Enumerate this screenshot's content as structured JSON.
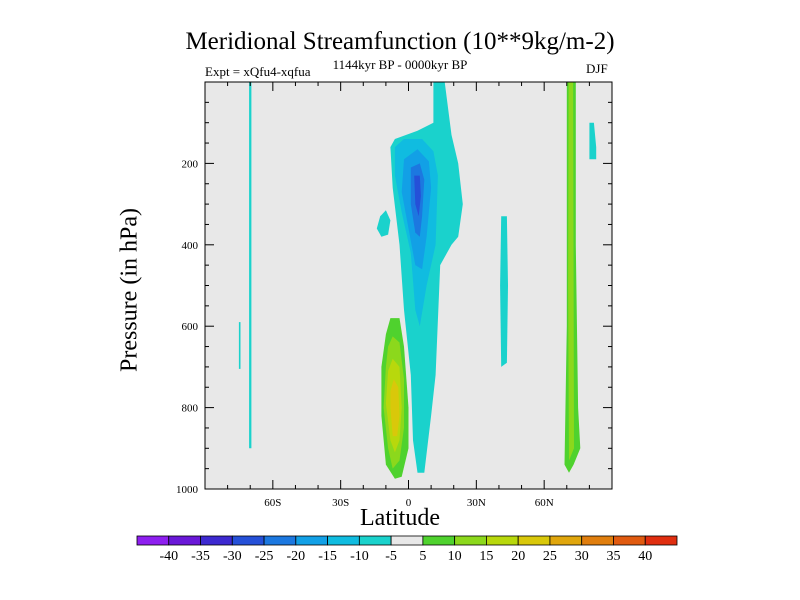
{
  "chart_data": {
    "type": "heatmap",
    "title": "Meridional Streamfunction (10**9kg/m-2)",
    "subtitle": "1144kyr BP - 0000kyr BP",
    "experiment": "Expt = xQfu4-xqfua",
    "season": "DJF",
    "xlabel": "Latitude",
    "ylabel": "Pressure (in hPa)",
    "x_ticks": [
      "60S",
      "30S",
      "0",
      "30N",
      "60N"
    ],
    "x_tick_values": [
      -60,
      -30,
      0,
      30,
      60
    ],
    "xlim": [
      -90,
      90
    ],
    "y_ticks": [
      "200",
      "400",
      "600",
      "800",
      "1000"
    ],
    "y_tick_values": [
      200,
      400,
      600,
      800,
      1000
    ],
    "ylim": [
      0,
      1000
    ],
    "background_color": "#e8e8e8",
    "colorbar": {
      "labels": [
        "-40",
        "-35",
        "-30",
        "-25",
        "-20",
        "-15",
        "-10",
        "-5",
        "5",
        "10",
        "15",
        "20",
        "25",
        "30",
        "35",
        "40"
      ],
      "colors": [
        "#8e1ff0",
        "#6a18d8",
        "#3d29d0",
        "#2550d8",
        "#1c78e0",
        "#12a0e6",
        "#10bce0",
        "#1ad2cc",
        "#e8e8e8",
        "#4fd22e",
        "#8cd81c",
        "#b8d80c",
        "#d9c80a",
        "#e0a60c",
        "#e07e0e",
        "#e05a10",
        "#e02e10"
      ]
    },
    "features": [
      {
        "name": "cell-a-0",
        "kind": "region",
        "level": -5,
        "points": [
          [
            -70.5,
            0
          ],
          [
            -69.5,
            0
          ],
          [
            -69.5,
            900
          ],
          [
            -70.5,
            900
          ]
        ]
      },
      {
        "name": "cell-b-0",
        "kind": "region",
        "level": -5,
        "points": [
          [
            -75,
            590
          ],
          [
            -74.3,
            590
          ],
          [
            -74.3,
            705
          ],
          [
            -75,
            705
          ]
        ]
      },
      {
        "name": "cell-c-0",
        "kind": "region",
        "level": -5,
        "points": [
          [
            -12.5,
            330
          ],
          [
            -10,
            315
          ],
          [
            -8,
            340
          ],
          [
            -9,
            375
          ],
          [
            -12,
            380
          ],
          [
            -14,
            360
          ]
        ]
      },
      {
        "name": "cell-d-0",
        "kind": "region",
        "level": -5,
        "points": [
          [
            11,
            0
          ],
          [
            16,
            0
          ],
          [
            19,
            130
          ],
          [
            22,
            200
          ],
          [
            24,
            300
          ],
          [
            22,
            380
          ],
          [
            19,
            400
          ],
          [
            14,
            450
          ],
          [
            12,
            720
          ],
          [
            10,
            820
          ],
          [
            7,
            960
          ],
          [
            4,
            960
          ],
          [
            2,
            880
          ],
          [
            1,
            720
          ],
          [
            -2,
            560
          ],
          [
            -4,
            400
          ],
          [
            -7,
            260
          ],
          [
            -8,
            160
          ],
          [
            -6,
            140
          ],
          [
            4,
            120
          ],
          [
            11,
            100
          ]
        ]
      },
      {
        "name": "cell-d-1",
        "kind": "region",
        "level": -10,
        "points": [
          [
            -6,
            160
          ],
          [
            -2,
            140
          ],
          [
            6,
            140
          ],
          [
            11,
            170
          ],
          [
            13,
            230
          ],
          [
            12,
            400
          ],
          [
            8,
            500
          ],
          [
            5,
            600
          ],
          [
            3,
            560
          ],
          [
            1,
            420
          ],
          [
            -3,
            320
          ],
          [
            -6,
            230
          ]
        ]
      },
      {
        "name": "cell-d-2",
        "kind": "region",
        "level": -15,
        "points": [
          [
            -2,
            190
          ],
          [
            4,
            165
          ],
          [
            9,
            195
          ],
          [
            10,
            260
          ],
          [
            8,
            380
          ],
          [
            6,
            460
          ],
          [
            3,
            450
          ],
          [
            0,
            360
          ],
          [
            -3,
            270
          ]
        ]
      },
      {
        "name": "cell-d-3",
        "kind": "region",
        "level": -20,
        "points": [
          [
            1,
            210
          ],
          [
            5,
            200
          ],
          [
            7,
            240
          ],
          [
            6,
            330
          ],
          [
            5,
            380
          ],
          [
            3,
            370
          ],
          [
            1,
            300
          ]
        ]
      },
      {
        "name": "cell-d-4",
        "kind": "region",
        "level": -25,
        "points": [
          [
            2.5,
            230
          ],
          [
            5,
            230
          ],
          [
            5.5,
            280
          ],
          [
            4.5,
            330
          ],
          [
            3,
            300
          ]
        ]
      },
      {
        "name": "cell-e-0",
        "kind": "region",
        "level": -5,
        "points": [
          [
            41,
            330
          ],
          [
            43.5,
            330
          ],
          [
            44,
            500
          ],
          [
            43.5,
            690
          ],
          [
            41,
            700
          ],
          [
            40.5,
            500
          ]
        ]
      },
      {
        "name": "cell-f-0",
        "kind": "region",
        "level": -5,
        "points": [
          [
            80,
            190
          ],
          [
            83,
            190
          ],
          [
            83,
            160
          ],
          [
            82,
            100
          ],
          [
            80,
            100
          ]
        ]
      },
      {
        "name": "cell-g-0",
        "kind": "region",
        "level": 5,
        "points": [
          [
            -8,
            580
          ],
          [
            -4,
            580
          ],
          [
            -2,
            650
          ],
          [
            0,
            800
          ],
          [
            0,
            900
          ],
          [
            -3,
            970
          ],
          [
            -6,
            975
          ],
          [
            -10,
            940
          ],
          [
            -12,
            820
          ],
          [
            -12,
            700
          ],
          [
            -10,
            620
          ]
        ]
      },
      {
        "name": "cell-g-1",
        "kind": "region",
        "level": 10,
        "points": [
          [
            -7,
            625
          ],
          [
            -4,
            640
          ],
          [
            -2,
            730
          ],
          [
            -2,
            850
          ],
          [
            -4,
            930
          ],
          [
            -7,
            950
          ],
          [
            -9,
            900
          ],
          [
            -11,
            800
          ],
          [
            -10,
            700
          ],
          [
            -9,
            650
          ]
        ]
      },
      {
        "name": "cell-g-2",
        "kind": "region",
        "level": 15,
        "points": [
          [
            -7,
            680
          ],
          [
            -4,
            700
          ],
          [
            -3,
            800
          ],
          [
            -4,
            880
          ],
          [
            -6,
            910
          ],
          [
            -8,
            880
          ],
          [
            -10,
            790
          ],
          [
            -9,
            710
          ]
        ]
      },
      {
        "name": "cell-g-3",
        "kind": "region",
        "level": 20,
        "points": [
          [
            -6.5,
            730
          ],
          [
            -4.5,
            750
          ],
          [
            -4,
            820
          ],
          [
            -5,
            870
          ],
          [
            -7,
            870
          ],
          [
            -8,
            800
          ],
          [
            -8,
            760
          ]
        ]
      },
      {
        "name": "cell-h-0",
        "kind": "region",
        "level": 5,
        "points": [
          [
            70,
            0
          ],
          [
            74,
            0
          ],
          [
            74,
            400
          ],
          [
            75,
            800
          ],
          [
            76,
            900
          ],
          [
            73,
            940
          ],
          [
            71,
            960
          ],
          [
            69,
            940
          ],
          [
            70,
            600
          ]
        ]
      },
      {
        "name": "cell-h-1",
        "kind": "region",
        "level": 10,
        "points": [
          [
            70.8,
            0
          ],
          [
            72.8,
            0
          ],
          [
            73,
            500
          ],
          [
            73.2,
            900
          ],
          [
            71,
            930
          ],
          [
            70.6,
            500
          ]
        ]
      }
    ]
  }
}
